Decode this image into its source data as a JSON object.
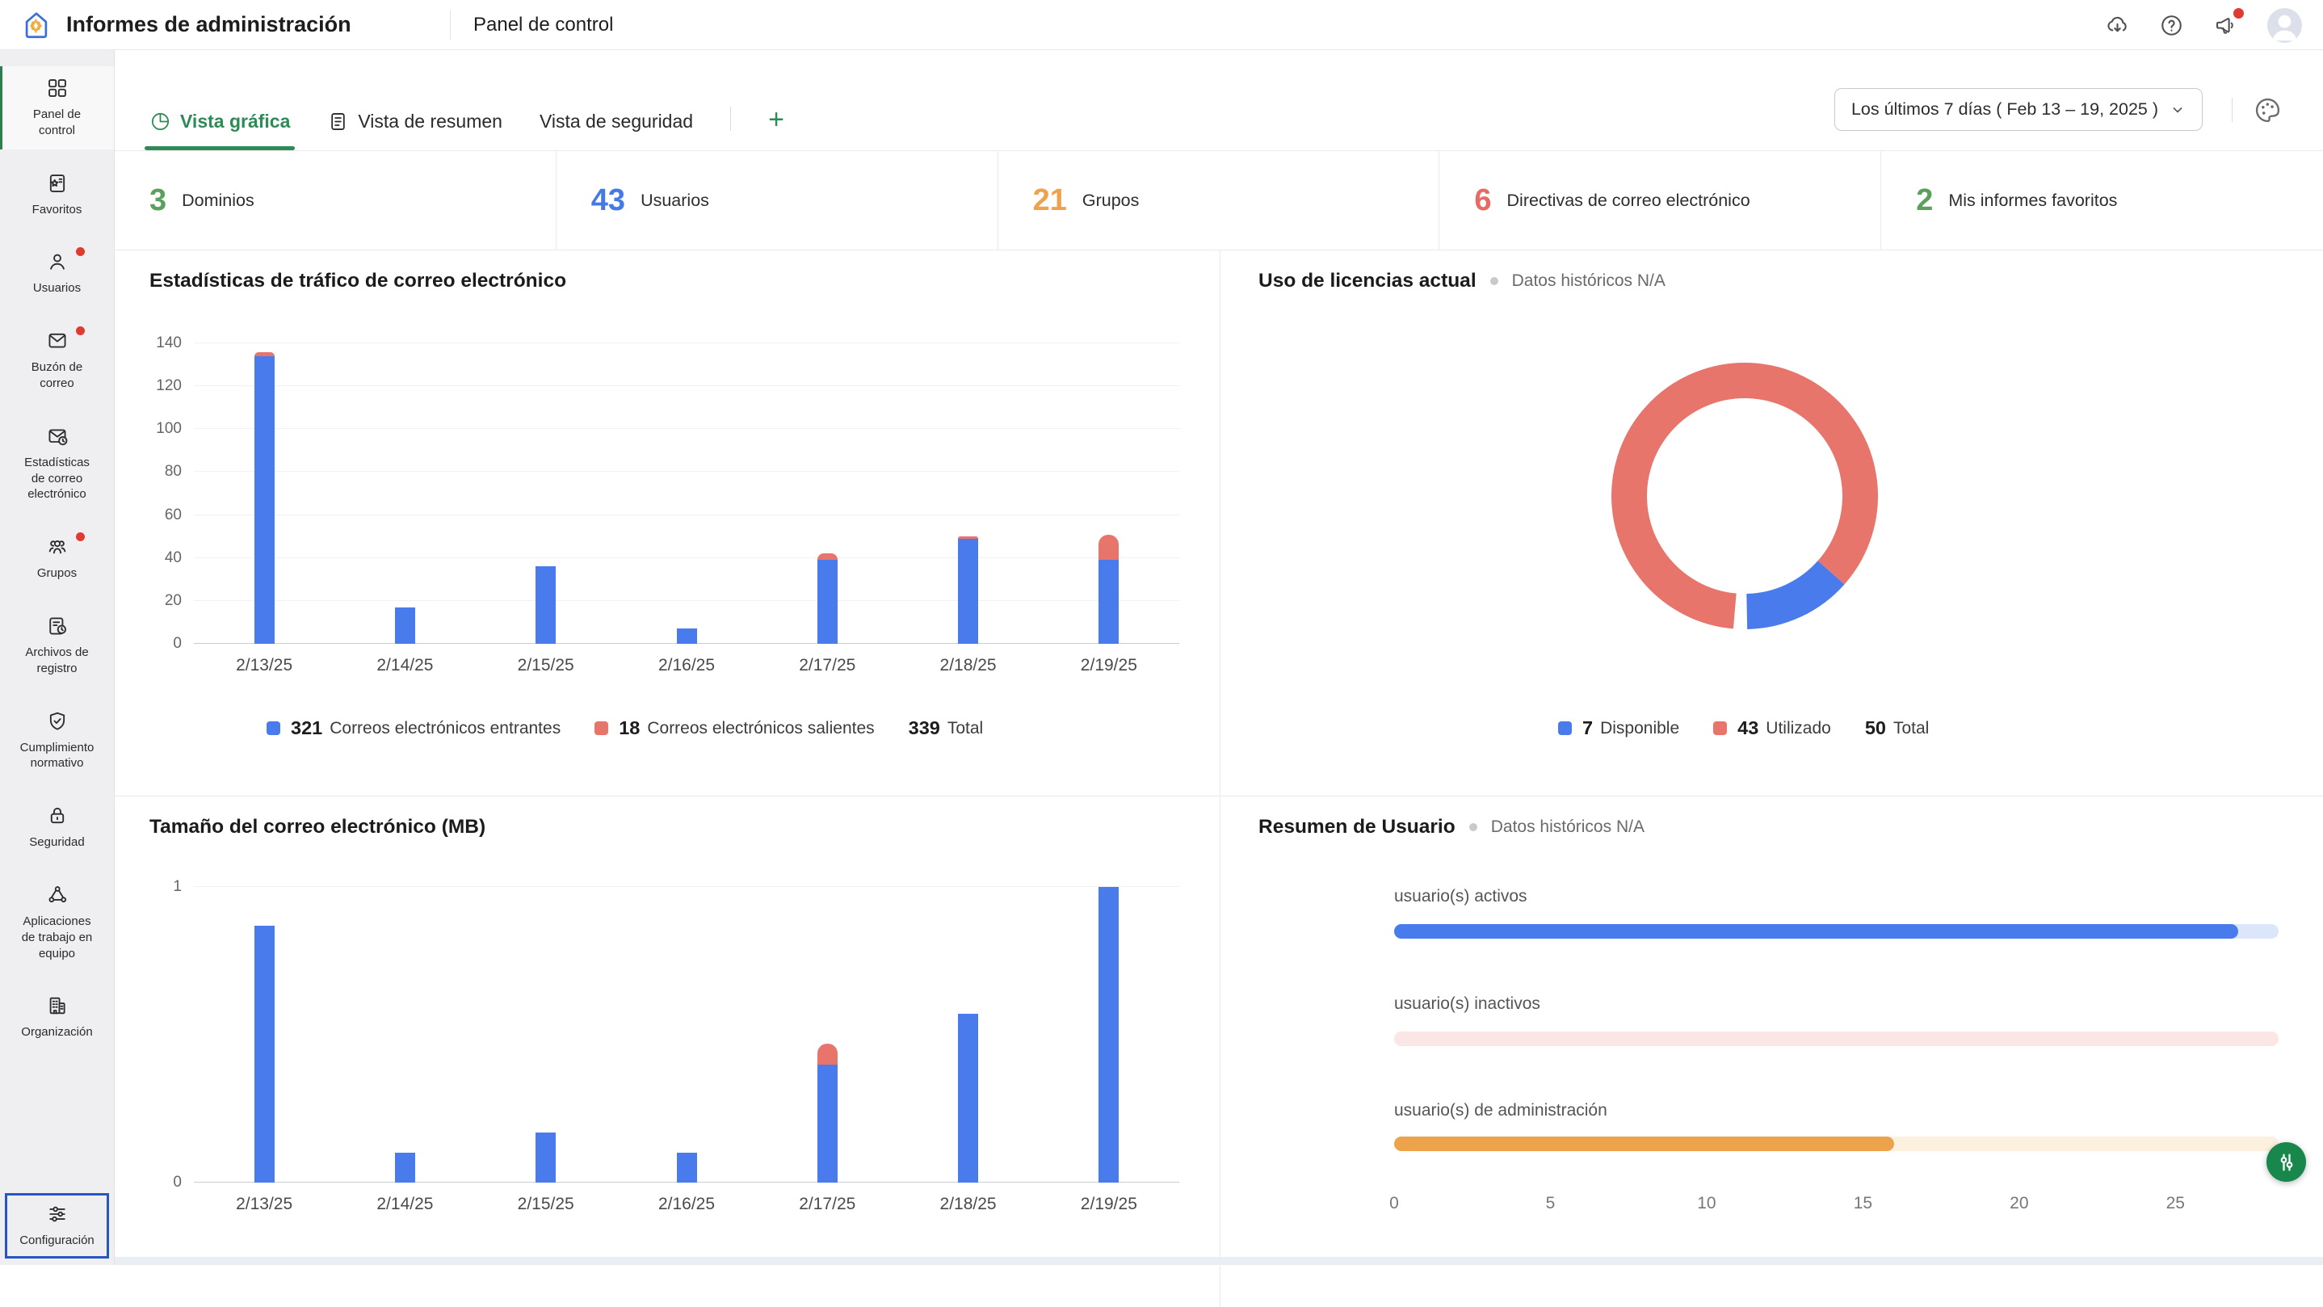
{
  "app": {
    "title": "Informes de administración",
    "section": "Panel de control"
  },
  "topbar": {
    "icons": [
      {
        "name": "cloud-download-icon"
      },
      {
        "name": "help-icon"
      },
      {
        "name": "announcements-icon",
        "badge": true
      },
      {
        "name": "avatar"
      }
    ]
  },
  "sidebar": {
    "items": [
      {
        "id": "panel-de-control",
        "label": "Panel de\ncontrol",
        "icon": "grid",
        "active": true
      },
      {
        "id": "favoritos",
        "label": "Favoritos",
        "icon": "favorites"
      },
      {
        "id": "usuarios",
        "label": "Usuarios",
        "icon": "user",
        "badge": true
      },
      {
        "id": "buzon-de-correo",
        "label": "Buzón de\ncorreo",
        "icon": "mailbox",
        "badge": true
      },
      {
        "id": "estadisticas-de-correo-electronico",
        "label": "Estadísticas\nde correo\nelectrónico",
        "icon": "mail-stats"
      },
      {
        "id": "grupos",
        "label": "Grupos",
        "icon": "groups",
        "badge": true
      },
      {
        "id": "archivos-de-registro",
        "label": "Archivos de\nregistro",
        "icon": "log-files"
      },
      {
        "id": "cumplimiento-normativo",
        "label": "Cumplimiento\nnormativo",
        "icon": "shield-check"
      },
      {
        "id": "seguridad",
        "label": "Seguridad",
        "icon": "lock"
      },
      {
        "id": "aplicaciones-de-trabajo-en-equipo",
        "label": "Aplicaciones\nde trabajo en\nequipo",
        "icon": "teamwork"
      },
      {
        "id": "organizacion",
        "label": "Organización",
        "icon": "building"
      },
      {
        "id": "configuracion",
        "label": "Configuración",
        "icon": "sliders",
        "highlighted": true
      }
    ]
  },
  "tabs": [
    {
      "label": "Vista gráfica",
      "icon": "pie-chart",
      "active": true
    },
    {
      "label": "Vista de resumen",
      "icon": "document",
      "active": false
    },
    {
      "label": "Vista de seguridad",
      "active": false
    }
  ],
  "add_tab_label": "+",
  "date_filter": {
    "label": "Los últimos 7 días ( Feb 13 – 19, 2025 )"
  },
  "stats": [
    {
      "value": "3",
      "label": "Dominios",
      "color": "#5CA05E"
    },
    {
      "value": "43",
      "label": "Usuarios",
      "color": "#4679E8"
    },
    {
      "value": "21",
      "label": "Grupos",
      "color": "#F0A14C"
    },
    {
      "value": "6",
      "label": "Directivas de correo electrónico",
      "color": "#E96A60"
    },
    {
      "value": "2",
      "label": "Mis informes favoritos",
      "color": "#5CA05E"
    }
  ],
  "chart_data": [
    {
      "id": "email-traffic",
      "type": "bar",
      "stacked": true,
      "title": "Estadísticas de tráfico de correo electrónico",
      "categories": [
        "2/13/25",
        "2/14/25",
        "2/15/25",
        "2/16/25",
        "2/17/25",
        "2/18/25",
        "2/19/25"
      ],
      "series": [
        {
          "name": "Correos electrónicos entrantes",
          "color": "#4A7BEC",
          "values": [
            134,
            17,
            36,
            7,
            39,
            49,
            39
          ],
          "total": 321
        },
        {
          "name": "Correos electrónicos salientes",
          "color": "#E8756B",
          "values": [
            2,
            0,
            0,
            0,
            3,
            1,
            12
          ],
          "total": 18
        }
      ],
      "total": 339,
      "total_label": "Total",
      "ylim": [
        0,
        140
      ],
      "yticks": [
        0,
        20,
        40,
        60,
        80,
        100,
        120,
        140
      ],
      "grid": true,
      "legend_position": "bottom"
    },
    {
      "id": "license-usage",
      "type": "donut",
      "title": "Uso de licencias actual",
      "subtitle": "Datos históricos N/A",
      "slices": [
        {
          "name": "Disponible",
          "value": 7,
          "color": "#4A7BEC"
        },
        {
          "name": "Utilizado",
          "value": 43,
          "color": "#E8756B"
        }
      ],
      "total": 50,
      "total_label": "Total",
      "legend_position": "bottom"
    },
    {
      "id": "email-size",
      "type": "bar",
      "stacked": true,
      "title": "Tamaño del correo electrónico (MB)",
      "categories": [
        "2/13/25",
        "2/14/25",
        "2/15/25",
        "2/16/25",
        "2/17/25",
        "2/18/25",
        "2/19/25"
      ],
      "series": [
        {
          "name": "Correos electrónicos entrantes",
          "color": "#4A7BEC",
          "values": [
            0.87,
            0.1,
            0.17,
            0.1,
            0.4,
            0.57,
            1.0
          ]
        },
        {
          "name": "Correos electrónicos salientes",
          "color": "#E8756B",
          "values": [
            0,
            0,
            0,
            0,
            0.07,
            0,
            0
          ]
        }
      ],
      "ylim": [
        0,
        1
      ],
      "yticks": [
        0,
        1
      ],
      "grid": true,
      "legend_position": "none"
    },
    {
      "id": "user-summary",
      "type": "hbar",
      "title": "Resumen de Usuario",
      "subtitle": "Datos históricos N/A",
      "rows": [
        {
          "label": "usuario(s) activos",
          "value": 27,
          "bar_color": "#4A7BEC",
          "track_color": "#DCE6FB",
          "fill_fraction": 0.954
        },
        {
          "label": "usuario(s) inactivos",
          "bar_color": "#FAE6E4",
          "track_color": "#FAE6E4",
          "fill_fraction": 1.0
        },
        {
          "label": "usuario(s) de administración",
          "value": 16,
          "bar_color": "#ECA34B",
          "track_color": "#FCF0DE",
          "fill_fraction": 0.565
        }
      ],
      "xticks": [
        0,
        5,
        10,
        15,
        20,
        25
      ],
      "axis_units_max": 28.3
    }
  ]
}
